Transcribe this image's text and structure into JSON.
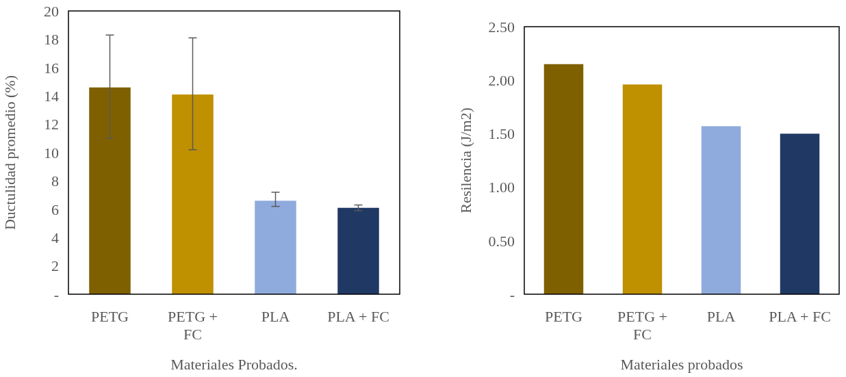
{
  "chart_data": [
    {
      "type": "bar",
      "xlabel": "Materiales Probados.",
      "ylabel": "Ductulidad promedio (%)",
      "categories": [
        "PETG",
        "PETG + FC",
        "PLA",
        "PLA + FC"
      ],
      "values": [
        14.6,
        14.1,
        6.6,
        6.1
      ],
      "colors": [
        "#7f6000",
        "#bf9000",
        "#8faadc",
        "#203864"
      ],
      "errors": [
        [
          11.0,
          18.3
        ],
        [
          10.2,
          18.1
        ],
        [
          6.2,
          7.2
        ],
        [
          5.9,
          6.3
        ]
      ],
      "ylim": [
        0,
        20
      ],
      "yticks": [
        {
          "value": 0,
          "label": "-"
        },
        2,
        4,
        6,
        8,
        10,
        12,
        14,
        16,
        18,
        20
      ],
      "grid": false
    },
    {
      "type": "bar",
      "xlabel": "Materiales probados",
      "ylabel": "Resilencia (J/m2)",
      "categories": [
        "PETG",
        "PETG + FC",
        "PLA",
        "PLA + FC"
      ],
      "values": [
        2.15,
        1.96,
        1.57,
        1.5
      ],
      "colors": [
        "#7f6000",
        "#bf9000",
        "#8faadc",
        "#203864"
      ],
      "ylim": [
        0,
        2.5
      ],
      "yticks": [
        {
          "value": 0,
          "label": "-"
        },
        {
          "value": 0.5,
          "label": "0.50"
        },
        {
          "value": 1,
          "label": "1.00"
        },
        {
          "value": 1.5,
          "label": "1.50"
        },
        {
          "value": 2,
          "label": "2.00"
        },
        {
          "value": 2.5,
          "label": "2.50"
        }
      ],
      "grid": false
    }
  ]
}
